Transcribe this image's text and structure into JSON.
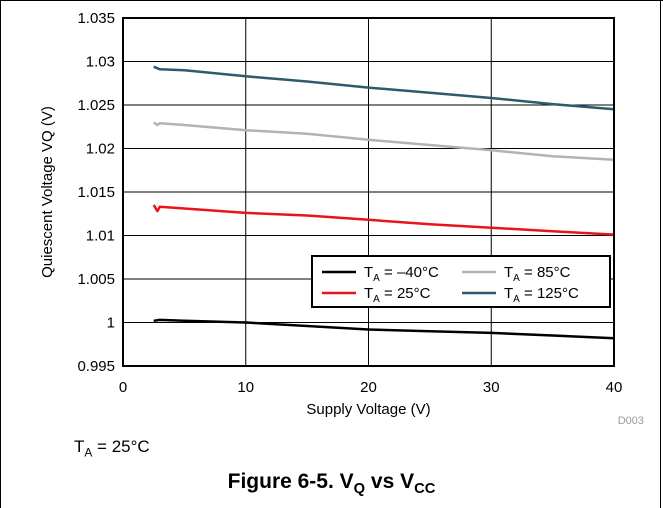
{
  "chart_data": {
    "type": "line",
    "xlabel": "Supply Voltage (V)",
    "ylabel": "Quiescent Voltage VQ (V)",
    "xlim": [
      0,
      40
    ],
    "ylim": [
      0.995,
      1.035
    ],
    "xticks": [
      0,
      10,
      20,
      30,
      40
    ],
    "yticks": [
      0.995,
      1,
      1.005,
      1.01,
      1.015,
      1.02,
      1.025,
      1.03,
      1.035
    ],
    "ytick_labels": [
      "0.995",
      "1",
      "1.005",
      "1.01",
      "1.015",
      "1.02",
      "1.025",
      "1.03",
      "1.035"
    ],
    "grid": true,
    "legend_position": "lower-right",
    "series": [
      {
        "name_main": "T",
        "name_sub": "A",
        "name_rest": " = –40°C",
        "color": "#000000",
        "x": [
          2.5,
          3,
          5,
          10,
          15,
          20,
          25,
          30,
          35,
          40
        ],
        "y": [
          1.0002,
          1.0003,
          1.0002,
          1.0,
          0.9996,
          0.9992,
          0.999,
          0.9988,
          0.9985,
          0.9982
        ]
      },
      {
        "name_main": "T",
        "name_sub": "A",
        "name_rest": " = 85°C",
        "color": "#b3b3b3",
        "x": [
          2.5,
          2.8,
          3,
          5,
          10,
          15,
          20,
          25,
          30,
          35,
          40
        ],
        "y": [
          1.023,
          1.0227,
          1.0229,
          1.0227,
          1.0221,
          1.0217,
          1.021,
          1.0204,
          1.0198,
          1.0191,
          1.0187
        ]
      },
      {
        "name_main": "T",
        "name_sub": "A",
        "name_rest": " = 25°C",
        "color": "#e8141b",
        "x": [
          2.5,
          2.8,
          3,
          5,
          10,
          15,
          20,
          25,
          30,
          35,
          40
        ],
        "y": [
          1.0135,
          1.0128,
          1.0133,
          1.0131,
          1.0126,
          1.0123,
          1.0118,
          1.0113,
          1.0109,
          1.0105,
          1.0101
        ]
      },
      {
        "name_main": "T",
        "name_sub": "A",
        "name_rest": " = 125°C",
        "color": "#2e5a6e",
        "x": [
          2.5,
          3,
          5,
          10,
          15,
          20,
          25,
          30,
          35,
          40
        ],
        "y": [
          1.0294,
          1.0291,
          1.029,
          1.0283,
          1.0277,
          1.027,
          1.0264,
          1.0258,
          1.0251,
          1.0245
        ]
      }
    ],
    "annotation": "D003"
  },
  "condition": {
    "main": "T",
    "sub": "A",
    "rest": " = 25°C"
  },
  "caption": {
    "prefix": "Figure 6-5. V",
    "sub1": "Q",
    "mid": " vs V",
    "sub2": "CC"
  }
}
